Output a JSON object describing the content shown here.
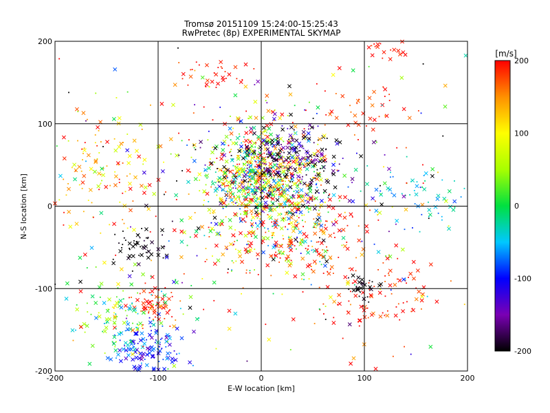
{
  "chart_data": {
    "type": "scatter",
    "title": "Tromsø 20151109 15:24:00-15:25:43",
    "subtitle": "RwPretec (8p) EXPERIMENTAL SKYMAP",
    "xlabel": "E-W location [km]",
    "ylabel": "N-S location [km]",
    "xlim": [
      -200,
      200
    ],
    "ylim": [
      -200,
      200
    ],
    "xticks": [
      -200,
      -100,
      0,
      100,
      200
    ],
    "yticks": [
      -200,
      -100,
      0,
      100,
      200
    ],
    "grid": true,
    "marker_styles": [
      "x",
      "dot"
    ],
    "colorbar": {
      "label": "[m/s]",
      "range": [
        -200,
        200
      ],
      "ticks": [
        200,
        100,
        0,
        -100,
        -200
      ],
      "colormap": "rainbow",
      "stops": [
        {
          "v": -200,
          "color": "#000000"
        },
        {
          "v": -150,
          "color": "#7a00b4"
        },
        {
          "v": -100,
          "color": "#0000ff"
        },
        {
          "v": -50,
          "color": "#00c8ff"
        },
        {
          "v": 0,
          "color": "#00e040"
        },
        {
          "v": 50,
          "color": "#a8ff00"
        },
        {
          "v": 100,
          "color": "#ffff00"
        },
        {
          "v": 150,
          "color": "#ff9000"
        },
        {
          "v": 200,
          "color": "#ff0000"
        }
      ]
    },
    "clusters": [
      {
        "cx": 0,
        "cy": 40,
        "sx": 28,
        "sy": 28,
        "n": 700,
        "vmean": 60,
        "vsd": 110
      },
      {
        "cx": 25,
        "cy": 50,
        "sx": 30,
        "sy": 25,
        "n": 250,
        "vmean": -180,
        "vsd": 40
      },
      {
        "cx": 10,
        "cy": -30,
        "sx": 35,
        "sy": 30,
        "n": 260,
        "vmean": 80,
        "vsd": 140
      },
      {
        "cx": -110,
        "cy": -175,
        "sx": 18,
        "sy": 18,
        "n": 140,
        "vmean": -100,
        "vsd": 30
      },
      {
        "cx": -105,
        "cy": -120,
        "sx": 10,
        "sy": 12,
        "n": 60,
        "vmean": 190,
        "vsd": 20
      },
      {
        "cx": -115,
        "cy": -45,
        "sx": 15,
        "sy": 12,
        "n": 50,
        "vmean": -200,
        "vsd": 10
      },
      {
        "cx": -140,
        "cy": -135,
        "sx": 25,
        "sy": 25,
        "n": 120,
        "vmean": 20,
        "vsd": 60
      },
      {
        "cx": 110,
        "cy": -110,
        "sx": 35,
        "sy": 30,
        "n": 90,
        "vmean": 190,
        "vsd": 20
      },
      {
        "cx": 100,
        "cy": -100,
        "sx": 8,
        "sy": 12,
        "n": 30,
        "vmean": -200,
        "vsd": 10
      },
      {
        "cx": 150,
        "cy": 15,
        "sx": 30,
        "sy": 20,
        "n": 60,
        "vmean": -40,
        "vsd": 30
      },
      {
        "cx": 120,
        "cy": 190,
        "sx": 12,
        "sy": 8,
        "n": 25,
        "vmean": 195,
        "vsd": 10
      },
      {
        "cx": -40,
        "cy": 160,
        "sx": 20,
        "sy": 15,
        "n": 30,
        "vmean": 190,
        "vsd": 20
      },
      {
        "cx": -160,
        "cy": 40,
        "sx": 30,
        "sy": 35,
        "n": 120,
        "vmean": 120,
        "vsd": 50
      },
      {
        "cx": 0,
        "cy": 0,
        "sx": 110,
        "sy": 110,
        "n": 420,
        "vmean": 60,
        "vsd": 160
      },
      {
        "cx": 90,
        "cy": 110,
        "sx": 25,
        "sy": 15,
        "n": 40,
        "vmean": 180,
        "vsd": 20
      },
      {
        "cx": 60,
        "cy": -40,
        "sx": 25,
        "sy": 25,
        "n": 60,
        "vmean": 180,
        "vsd": 30
      }
    ]
  }
}
